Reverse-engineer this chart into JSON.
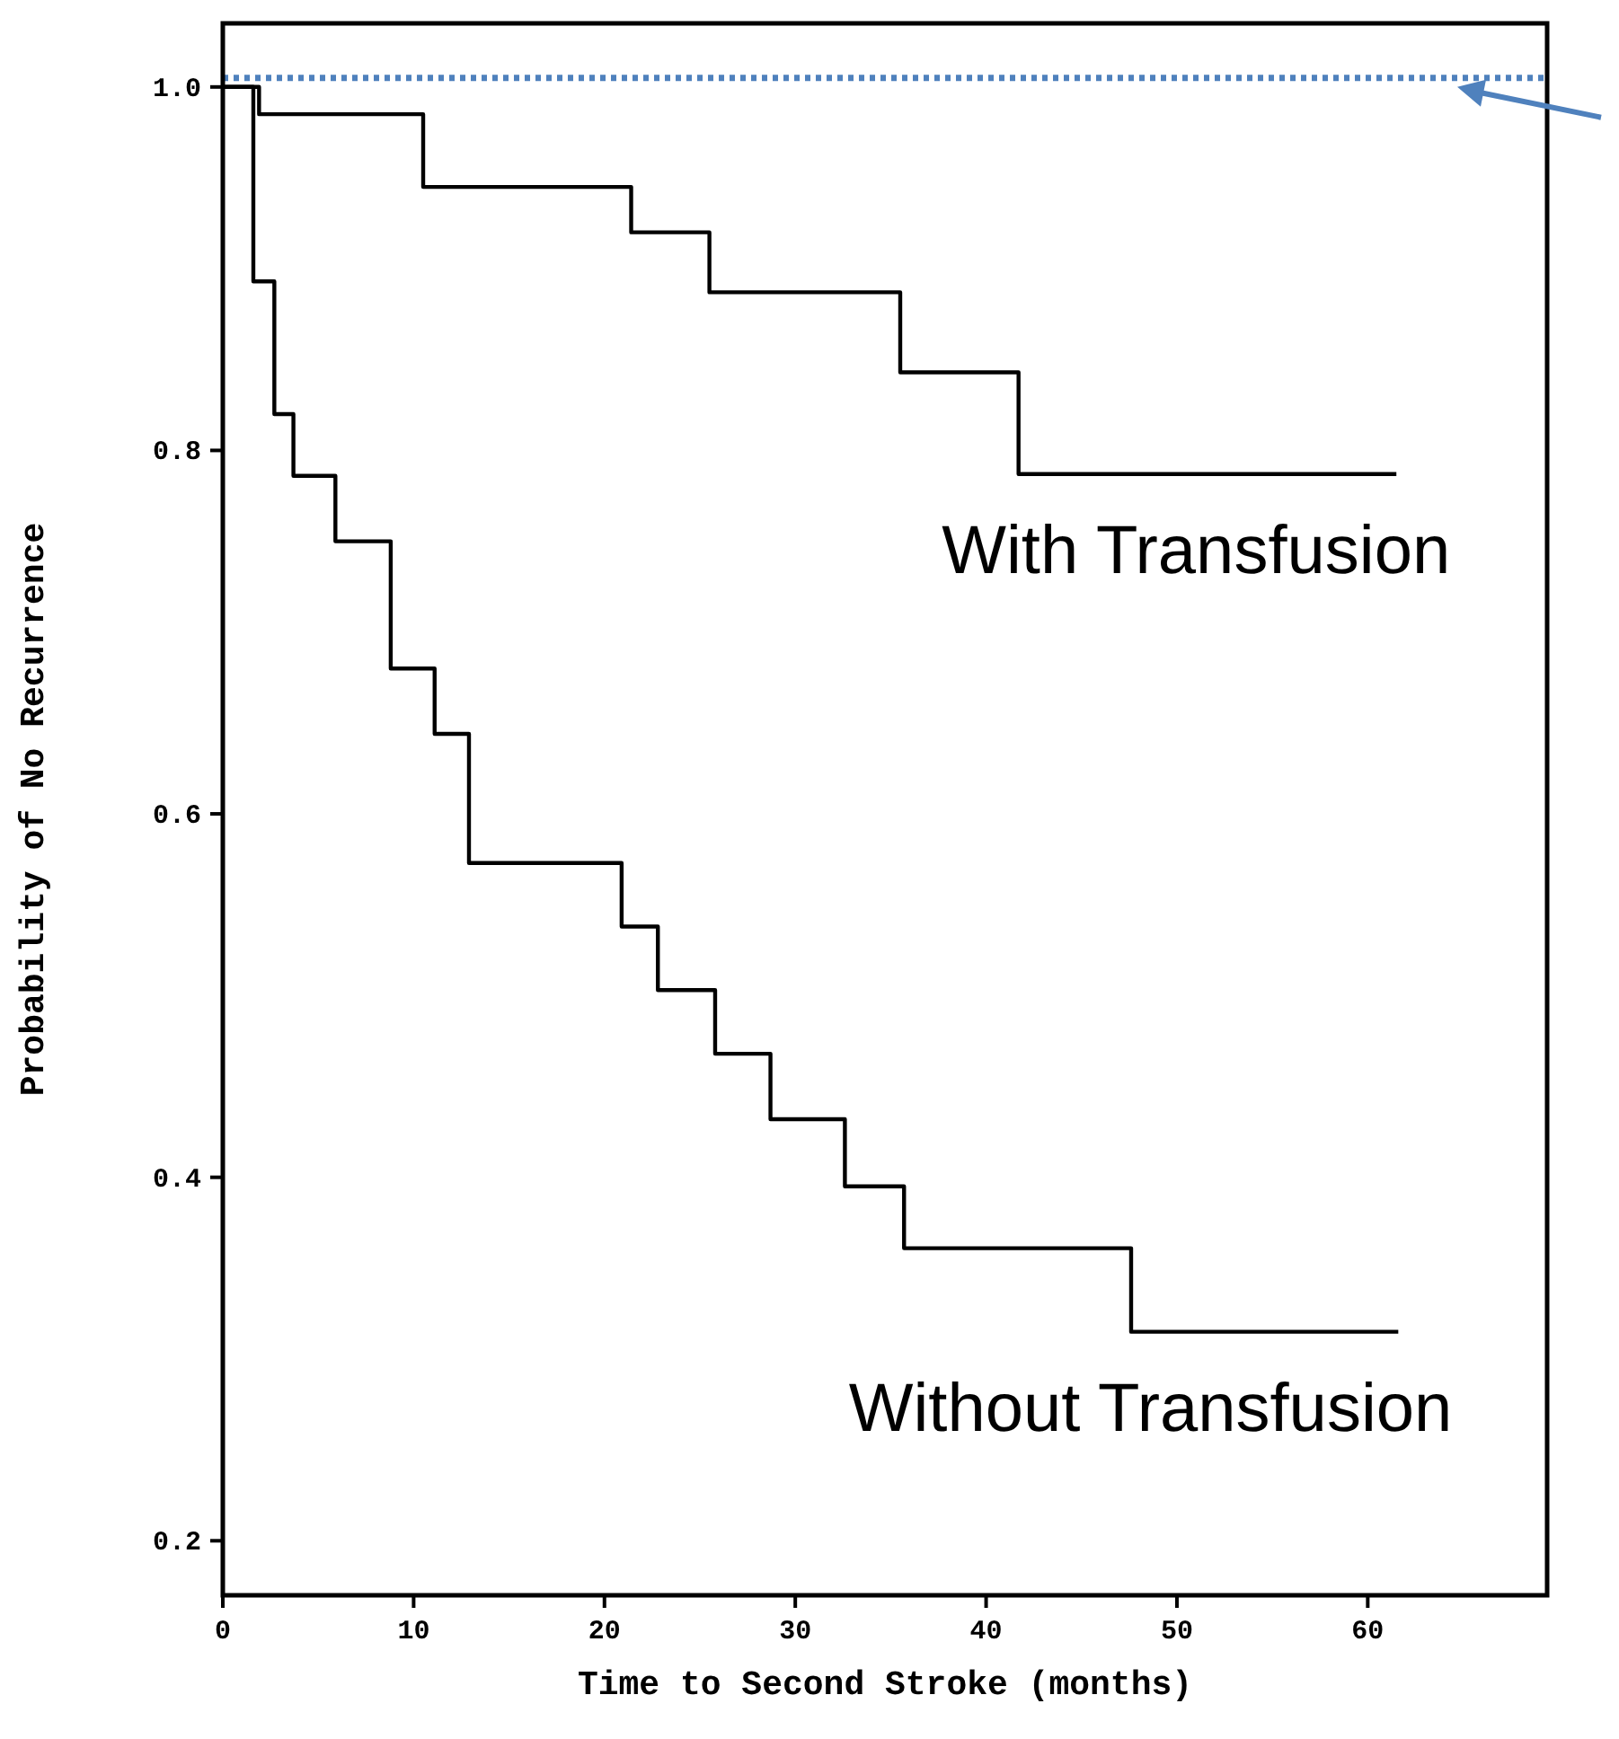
{
  "chart_data": {
    "type": "step",
    "xlabel": "Time to Second Stroke (months)",
    "ylabel": "Probability of No Recurrence",
    "xlim": [
      0,
      69.4
    ],
    "ylim": [
      0.17,
      1.035
    ],
    "xticks": [
      0,
      10,
      20,
      30,
      40,
      50,
      60
    ],
    "yticks": [
      {
        "value": 0.2,
        "label": "0.2"
      },
      {
        "value": 0.4,
        "label": "0.4"
      },
      {
        "value": 0.6,
        "label": "0.6"
      },
      {
        "value": 0.8,
        "label": "0.8"
      },
      {
        "value": 1.0,
        "label": "1.0"
      }
    ],
    "grid": false,
    "line_style": "solid",
    "marker": "none",
    "series": [
      {
        "name": "With Transfusion",
        "color": "#000000",
        "x": [
          0,
          1.9,
          10.5,
          21.4,
          25.5,
          35.5,
          41.7,
          61.5
        ],
        "values": [
          1.0,
          0.985,
          0.945,
          0.92,
          0.887,
          0.843,
          0.787,
          0.787
        ]
      },
      {
        "name": "Without Transfusion",
        "color": "#000000",
        "x": [
          0,
          1.6,
          2.7,
          3.7,
          5.9,
          8.8,
          11.1,
          12.9,
          20.9,
          22.8,
          25.8,
          28.7,
          32.6,
          35.7,
          47.6,
          61.6
        ],
        "values": [
          1.0,
          0.893,
          0.82,
          0.786,
          0.75,
          0.68,
          0.644,
          0.573,
          0.538,
          0.503,
          0.468,
          0.432,
          0.395,
          0.361,
          0.315,
          0.315
        ]
      }
    ],
    "ref_lines": [
      {
        "axis": "y",
        "value": 1.005,
        "color": "#4f81bd",
        "line_style": "dotted"
      }
    ]
  }
}
